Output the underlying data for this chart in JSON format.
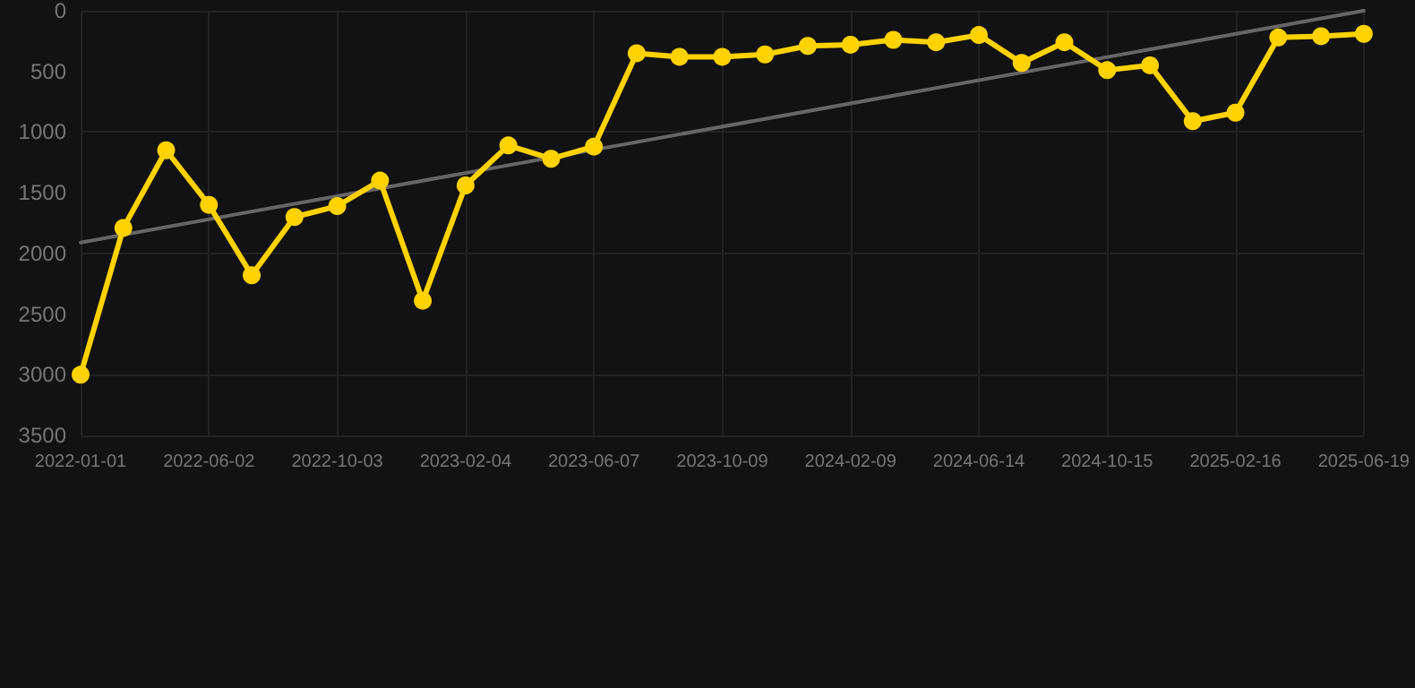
{
  "chart_data": {
    "type": "line",
    "categories": [
      "2022-01-01",
      null,
      null,
      "2022-06-02",
      null,
      null,
      "2022-10-03",
      null,
      null,
      "2023-02-04",
      null,
      null,
      "2023-06-07",
      null,
      null,
      "2023-10-09",
      null,
      null,
      "2024-02-09",
      null,
      null,
      "2024-06-14",
      null,
      null,
      "2024-10-15",
      null,
      null,
      "2025-02-16",
      null,
      null,
      "2025-06-19"
    ],
    "series": [
      {
        "color": "#ffd200",
        "values": [
          3000,
          1790,
          1150,
          1600,
          2180,
          1700,
          1610,
          1400,
          2390,
          1440,
          1110,
          1220,
          1120,
          350,
          380,
          380,
          360,
          290,
          280,
          240,
          260,
          200,
          430,
          260,
          490,
          450,
          910,
          840,
          220,
          210,
          190
        ],
        "marker": "circle"
      },
      {
        "type": "line",
        "color": "#666666",
        "values": [
          1910,
          null,
          null,
          null,
          null,
          null,
          null,
          null,
          null,
          null,
          null,
          null,
          null,
          null,
          null,
          null,
          null,
          null,
          null,
          null,
          null,
          null,
          null,
          null,
          null,
          null,
          null,
          null,
          null,
          null,
          0
        ],
        "marker": "none"
      }
    ],
    "ylim": [
      3500,
      0
    ],
    "yticks": [
      0,
      500,
      1000,
      1500,
      2000,
      2500,
      3000,
      3500
    ],
    "grid": true
  }
}
